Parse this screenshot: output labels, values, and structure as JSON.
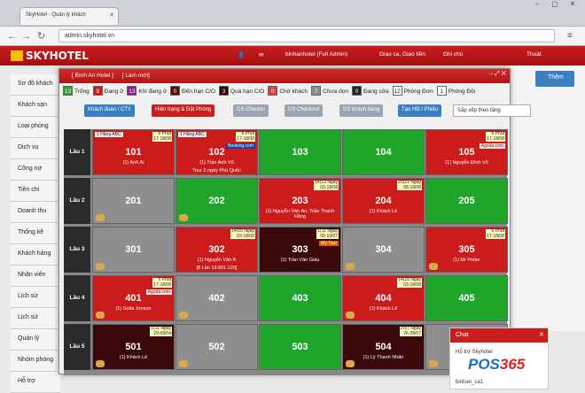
{
  "browser": {
    "tab_title": "SkyHotel - Quản lý khách",
    "url": "admin.skyhotel.vn"
  },
  "app": {
    "logo": "SKYHOTEL",
    "user": "binhanhotel (Full Admin)",
    "shift": "Giao ca, Giao tiền",
    "notes": "Ghi chú",
    "logout": "Thoát"
  },
  "sidebar": {
    "items": [
      "Sơ đồ khách",
      "Khách sạn",
      "Loại phòng",
      "Dịch vụ",
      "Công nợ",
      "Tiền chi",
      "Doanh thu",
      "Thống kê",
      "Khách hàng",
      "Nhân viên",
      "Lịch sử",
      "Lịch sử",
      "Quản lý",
      "Nhóm phòng",
      "Hỗ trợ"
    ]
  },
  "right_panel": {
    "add_label": "Thêm"
  },
  "modal": {
    "title": "[ Bình An Hotel ]",
    "title_link": "[ Làm mới]",
    "legend": [
      {
        "num": "13",
        "label": "Trống",
        "color": "#2e9e2e"
      },
      {
        "num": "9",
        "label": "Đang ở",
        "color": "#cc1b1b"
      },
      {
        "num": "13",
        "label": "Khi đang ở",
        "color": "#8a1f8a"
      },
      {
        "num": "0",
        "label": "Đến hạn C/O",
        "color": "#5a0a0a"
      },
      {
        "num": "3",
        "label": "Quá hạn C/O",
        "color": "#2a0505"
      },
      {
        "num": "0",
        "label": "Chờ khách",
        "color": "#d64040"
      },
      {
        "num": "7",
        "label": "Chưa dọn",
        "color": "#8c8c8c"
      },
      {
        "num": "0",
        "label": "Đang sửa",
        "color": "#222"
      },
      {
        "num": "12",
        "label": "Phòng Đơn",
        "color": "#fff"
      },
      {
        "num": "1",
        "label": "Phòng Đôi",
        "color": "#fff"
      }
    ],
    "toolbar": {
      "b1": "Khách đoàn / CTY",
      "b2": "Hiện trạng & Đặt Phòng",
      "b3": "DS Checkin",
      "b4": "DS Checkout",
      "b5": "DS khách hàng",
      "b6": "Tạo HĐ / Phiếu",
      "sort": "Sắp xếp theo tầng"
    },
    "floors": [
      {
        "name": "Lầu 1",
        "rooms": [
          {
            "num": "101",
            "guest": "(1) Anh Ai",
            "state": "red",
            "time": "6 Phút\n17-18/08",
            "company": "1 Hãng ABC"
          },
          {
            "num": "102",
            "guest": "(1) Trần Anh Vũ",
            "state": "red",
            "time": "6 Phút\n17-18/08",
            "company": "1 Hãng ABC",
            "badge": "Booking.com",
            "note": "Tour 2 ngày Phú Quốc"
          },
          {
            "num": "103",
            "guest": "",
            "state": "green"
          },
          {
            "num": "104",
            "guest": "",
            "state": "green"
          },
          {
            "num": "105",
            "guest": "(1) Nguyễn Đình Vũ",
            "state": "red",
            "time": "6 Phút\n17-18/08",
            "badge": "Agoda.com"
          }
        ]
      },
      {
        "name": "Lầu 2",
        "rooms": [
          {
            "num": "201",
            "guest": "",
            "state": "gray",
            "clean": true
          },
          {
            "num": "202",
            "guest": "",
            "state": "green",
            "clean": true
          },
          {
            "num": "203",
            "guest": "(1) Nguyễn Văn An, Trần Thanh Hằng",
            "state": "red",
            "time": "14(13 Ngày\n03-18/08"
          },
          {
            "num": "204",
            "guest": "(1) Khách Lẻ",
            "state": "red",
            "time": "20(21 Ngày\n08-18/08"
          },
          {
            "num": "205",
            "guest": "",
            "state": "green"
          }
        ]
      },
      {
        "name": "Lầu 3",
        "rooms": [
          {
            "num": "301",
            "guest": "",
            "state": "gray",
            "clean": true
          },
          {
            "num": "302",
            "guest": "(1) Nguyễn Văn A",
            "state": "red",
            "time": "14(15 Ngày\n03-18/08",
            "note": "[8 Lần 19.601.120]"
          },
          {
            "num": "303",
            "guest": "(1) Trần Văn Giàu",
            "state": "dark",
            "time": "1(11 Ngày\n09-10/07",
            "badge": "My Tour"
          },
          {
            "num": "304",
            "guest": "",
            "state": "gray",
            "clean": true
          },
          {
            "num": "305",
            "guest": "(1) Mr Potter",
            "state": "red",
            "time": "6 Phút\n17-18/08",
            "clean": true
          }
        ]
      },
      {
        "name": "Lầu 4",
        "rooms": [
          {
            "num": "401",
            "guest": "(1) Sofia Jonson",
            "state": "red",
            "time": "5 Phút\n17-18/08",
            "badge": "Agoda.com",
            "clean": true
          },
          {
            "num": "402",
            "guest": "",
            "state": "gray",
            "clean": true
          },
          {
            "num": "403",
            "guest": "",
            "state": "green"
          },
          {
            "num": "404",
            "guest": "(1) Khách Lẻ",
            "state": "red",
            "time": "14(15 Ngày\n03-18/08",
            "clean": true
          },
          {
            "num": "405",
            "guest": "",
            "state": "green"
          }
        ]
      },
      {
        "name": "Lầu 5",
        "rooms": [
          {
            "num": "501",
            "guest": "(1) Khách Lẻ",
            "state": "dark",
            "time": "1(11 Ngày\n29-09/04",
            "clean": true
          },
          {
            "num": "502",
            "guest": "",
            "state": "gray",
            "clean": true
          },
          {
            "num": "503",
            "guest": "",
            "state": "green"
          },
          {
            "num": "504",
            "guest": "(1) Lý Thanh Nhân",
            "state": "dark",
            "time": "20(7 Ngày\n26-28/07",
            "clean": true
          },
          {
            "num": "505",
            "guest": "",
            "state": "gray",
            "clean": true
          }
        ]
      }
    ]
  },
  "chat": {
    "title": "Chat",
    "line1": "Hỗ trợ Skyhotel",
    "line2": "binhan_ca1"
  },
  "watermark": {
    "a": "POS",
    "b": "365"
  },
  "colors": {
    "red": "#cc1b1b",
    "green": "#1fa52a",
    "gray": "#8f8f8f",
    "dark": "#3a0808"
  }
}
